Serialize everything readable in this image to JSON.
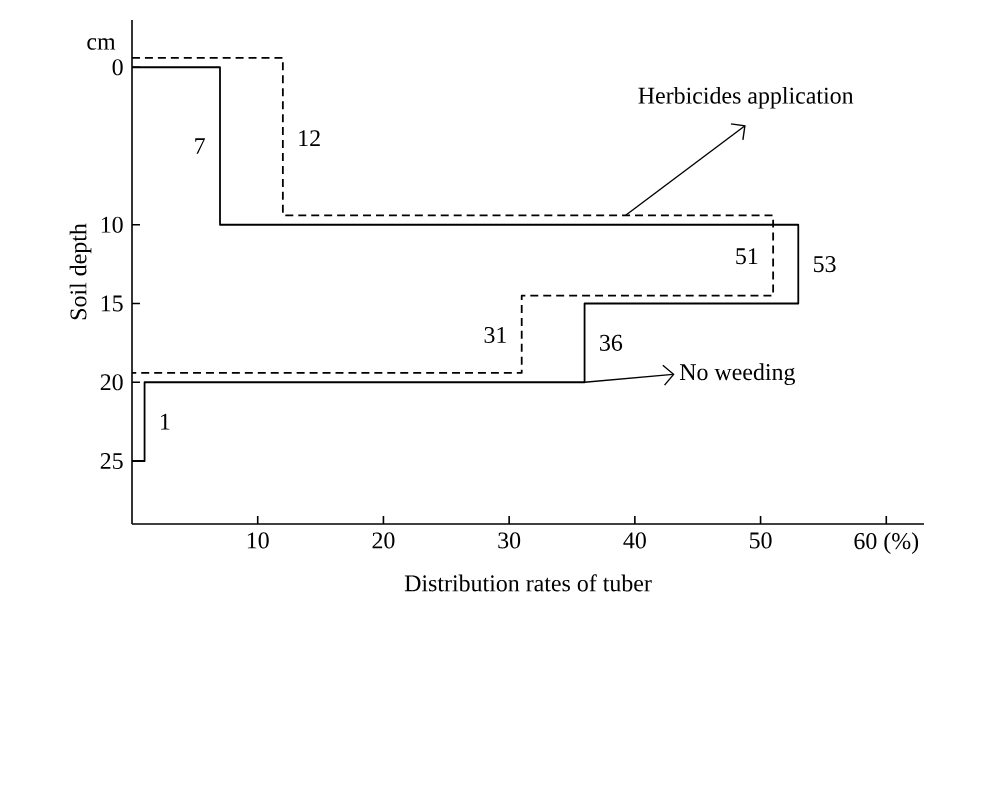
{
  "chart_data": {
    "type": "line",
    "xlabel": "Distribution rates of tuber",
    "ylabel": "Soil depth",
    "annotations": [
      "cm",
      {
        "text": "7",
        "x": 7,
        "y": 5
      },
      {
        "text": "12",
        "x": 12,
        "y": 4.5
      },
      {
        "text": "53",
        "x": 53,
        "y": 12.5
      },
      {
        "text": "51",
        "x": 51,
        "y": 12
      },
      {
        "text": "36",
        "x": 36,
        "y": 17.5
      },
      {
        "text": "31",
        "x": 31,
        "y": 17
      },
      {
        "text": "1",
        "x": 1,
        "y": 22.5
      }
    ],
    "xlim": [
      0,
      63
    ],
    "xticks": [
      10,
      20,
      30,
      40,
      50,
      {
        "value": 60,
        "label": "60 (%)"
      }
    ],
    "ylim": [
      29,
      -3
    ],
    "yticks": [
      0,
      10,
      15,
      20,
      25
    ],
    "series": [
      {
        "name": "No weeding",
        "color": "#000000",
        "line_style": "solid",
        "x": [
          0,
          7,
          7,
          53,
          53,
          36,
          36,
          1,
          1,
          0
        ],
        "values": [
          0,
          0,
          10,
          10,
          15,
          15,
          20,
          20,
          25,
          25
        ]
      },
      {
        "name": "Herbicides application",
        "color": "#000000",
        "line_style": "dashed",
        "x": [
          0,
          12,
          12,
          51,
          51,
          31,
          31,
          0
        ],
        "values": [
          -0.6,
          -0.6,
          9.4,
          9.4,
          14.5,
          14.5,
          19.4,
          19.4
        ]
      }
    ]
  }
}
